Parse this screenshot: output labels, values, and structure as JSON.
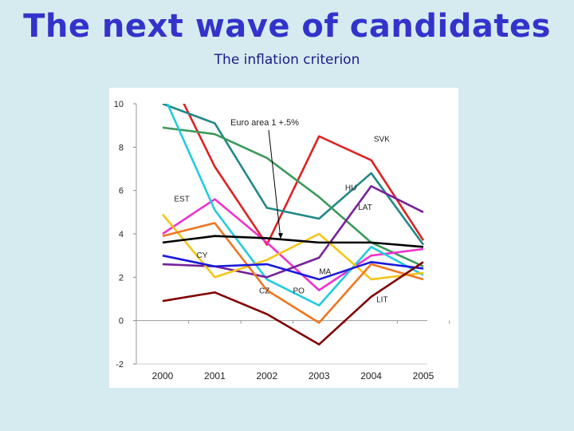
{
  "title": "The next wave of candidates",
  "subtitle": "The inflation criterion",
  "chart_data": {
    "type": "line",
    "x": [
      "2000",
      "2001",
      "2002",
      "2003",
      "2004",
      "2005"
    ],
    "ylim": [
      -2,
      10
    ],
    "yticks": [
      -2,
      0,
      2,
      4,
      6,
      8,
      10
    ],
    "grid": false,
    "annotation": "Euro area 1 +.5%",
    "series": [
      {
        "name": "SVK",
        "color": "#dd2222",
        "values": [
          12.0,
          7.1,
          3.5,
          8.5,
          7.4,
          3.7
        ]
      },
      {
        "name": "HU",
        "color": "#228888",
        "values": [
          10.0,
          9.1,
          5.2,
          4.7,
          6.8,
          3.5
        ]
      },
      {
        "name": "",
        "color": "#3a9a5a",
        "values": [
          8.9,
          8.6,
          7.5,
          5.7,
          3.6,
          2.5
        ]
      },
      {
        "name": "EST",
        "color": "#ee33cc",
        "values": [
          4.0,
          5.6,
          3.6,
          1.4,
          3.0,
          3.3
        ]
      },
      {
        "name": "",
        "color": "#22ccdd",
        "values": [
          10.5,
          5.1,
          1.9,
          0.7,
          3.4,
          2.1
        ]
      },
      {
        "name": "LAT",
        "color": "#772299",
        "values": [
          2.6,
          2.5,
          2.0,
          2.9,
          6.2,
          5.0
        ]
      },
      {
        "name": "Euro area 1 +.5%",
        "color": "#000000",
        "values": [
          3.6,
          3.9,
          3.8,
          3.6,
          3.6,
          3.4
        ]
      },
      {
        "name": "CY",
        "color": "#f5c518",
        "values": [
          4.9,
          2.0,
          2.8,
          4.0,
          1.9,
          2.2
        ]
      },
      {
        "name": "CZ",
        "color": "#ee7722",
        "values": [
          3.9,
          4.5,
          1.4,
          -0.1,
          2.6,
          1.9
        ]
      },
      {
        "name": "MA",
        "color": "#1a1add",
        "values": [
          3.0,
          2.5,
          2.6,
          1.9,
          2.7,
          2.4
        ]
      },
      {
        "name": "LIT",
        "color": "#800000",
        "values": [
          0.9,
          1.3,
          0.3,
          -1.1,
          1.1,
          2.7
        ]
      }
    ],
    "labels": [
      "SVK",
      "HU",
      "EST",
      "LAT",
      "CY",
      "MA",
      "CZ",
      "PO",
      "LIT"
    ]
  }
}
